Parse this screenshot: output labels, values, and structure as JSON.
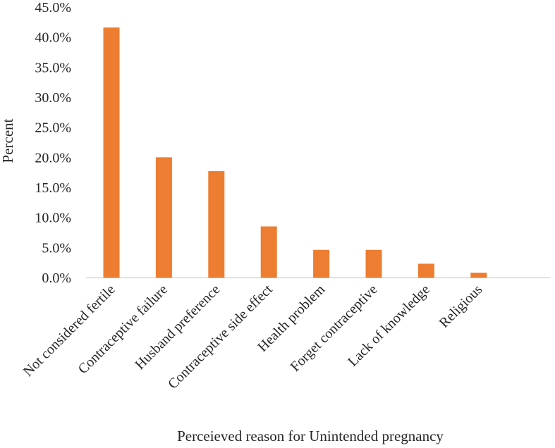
{
  "chart_data": {
    "type": "bar",
    "title": "",
    "xlabel": "Perceieved reason for Unintended pregnancy",
    "ylabel": "Percent",
    "categories": [
      "Not considered fertile",
      "Contraceptive failure",
      "Husband preference",
      "Contraceptive side effect",
      "Health problem",
      "Forget contraceptive",
      "Lack of knowledge",
      "Religious"
    ],
    "values": [
      41.6,
      20.0,
      17.7,
      8.5,
      4.6,
      4.6,
      2.3,
      0.8
    ],
    "ylim": [
      0,
      45
    ],
    "yticks": [
      0,
      5,
      10,
      15,
      20,
      25,
      30,
      35,
      40,
      45
    ],
    "ytick_labels": [
      "0.0%",
      "5.0%",
      "10.0%",
      "15.0%",
      "20.0%",
      "25.0%",
      "30.0%",
      "35.0%",
      "40.0%",
      "45.0%"
    ],
    "grid": false,
    "legend": "none",
    "bar_color": "#ed7d31",
    "axis_color": "#bfbfbf",
    "text_color": "#262626"
  }
}
